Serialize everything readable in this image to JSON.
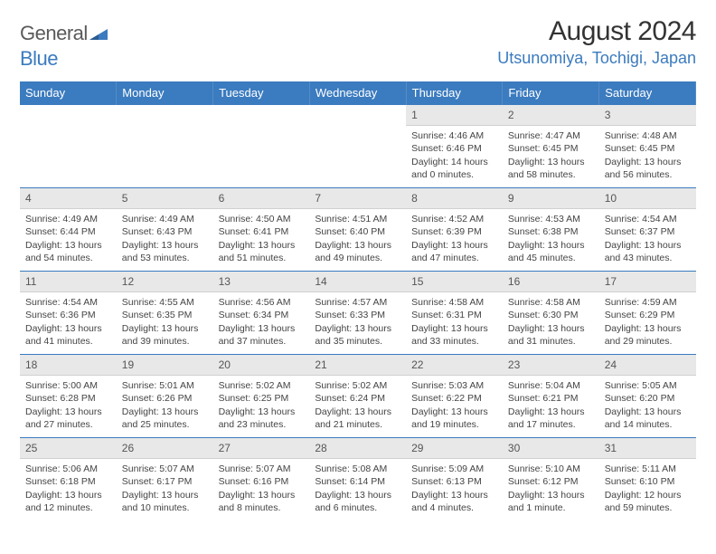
{
  "logo": {
    "text1": "General",
    "text2": "Blue"
  },
  "title": "August 2024",
  "location": "Utsunomiya, Tochigi, Japan",
  "colors": {
    "accent": "#3b7bbf",
    "header_bg": "#3b7bbf",
    "header_text": "#ffffff",
    "day_number_bg": "#e8e8e8",
    "body_bg": "#ffffff",
    "text": "#333333",
    "grid_line": "#3b7bbf"
  },
  "weekdays": [
    "Sunday",
    "Monday",
    "Tuesday",
    "Wednesday",
    "Thursday",
    "Friday",
    "Saturday"
  ],
  "weeks": [
    [
      null,
      null,
      null,
      null,
      {
        "n": "1",
        "sunrise": "4:46 AM",
        "sunset": "6:46 PM",
        "daylight": "14 hours and 0 minutes."
      },
      {
        "n": "2",
        "sunrise": "4:47 AM",
        "sunset": "6:45 PM",
        "daylight": "13 hours and 58 minutes."
      },
      {
        "n": "3",
        "sunrise": "4:48 AM",
        "sunset": "6:45 PM",
        "daylight": "13 hours and 56 minutes."
      }
    ],
    [
      {
        "n": "4",
        "sunrise": "4:49 AM",
        "sunset": "6:44 PM",
        "daylight": "13 hours and 54 minutes."
      },
      {
        "n": "5",
        "sunrise": "4:49 AM",
        "sunset": "6:43 PM",
        "daylight": "13 hours and 53 minutes."
      },
      {
        "n": "6",
        "sunrise": "4:50 AM",
        "sunset": "6:41 PM",
        "daylight": "13 hours and 51 minutes."
      },
      {
        "n": "7",
        "sunrise": "4:51 AM",
        "sunset": "6:40 PM",
        "daylight": "13 hours and 49 minutes."
      },
      {
        "n": "8",
        "sunrise": "4:52 AM",
        "sunset": "6:39 PM",
        "daylight": "13 hours and 47 minutes."
      },
      {
        "n": "9",
        "sunrise": "4:53 AM",
        "sunset": "6:38 PM",
        "daylight": "13 hours and 45 minutes."
      },
      {
        "n": "10",
        "sunrise": "4:54 AM",
        "sunset": "6:37 PM",
        "daylight": "13 hours and 43 minutes."
      }
    ],
    [
      {
        "n": "11",
        "sunrise": "4:54 AM",
        "sunset": "6:36 PM",
        "daylight": "13 hours and 41 minutes."
      },
      {
        "n": "12",
        "sunrise": "4:55 AM",
        "sunset": "6:35 PM",
        "daylight": "13 hours and 39 minutes."
      },
      {
        "n": "13",
        "sunrise": "4:56 AM",
        "sunset": "6:34 PM",
        "daylight": "13 hours and 37 minutes."
      },
      {
        "n": "14",
        "sunrise": "4:57 AM",
        "sunset": "6:33 PM",
        "daylight": "13 hours and 35 minutes."
      },
      {
        "n": "15",
        "sunrise": "4:58 AM",
        "sunset": "6:31 PM",
        "daylight": "13 hours and 33 minutes."
      },
      {
        "n": "16",
        "sunrise": "4:58 AM",
        "sunset": "6:30 PM",
        "daylight": "13 hours and 31 minutes."
      },
      {
        "n": "17",
        "sunrise": "4:59 AM",
        "sunset": "6:29 PM",
        "daylight": "13 hours and 29 minutes."
      }
    ],
    [
      {
        "n": "18",
        "sunrise": "5:00 AM",
        "sunset": "6:28 PM",
        "daylight": "13 hours and 27 minutes."
      },
      {
        "n": "19",
        "sunrise": "5:01 AM",
        "sunset": "6:26 PM",
        "daylight": "13 hours and 25 minutes."
      },
      {
        "n": "20",
        "sunrise": "5:02 AM",
        "sunset": "6:25 PM",
        "daylight": "13 hours and 23 minutes."
      },
      {
        "n": "21",
        "sunrise": "5:02 AM",
        "sunset": "6:24 PM",
        "daylight": "13 hours and 21 minutes."
      },
      {
        "n": "22",
        "sunrise": "5:03 AM",
        "sunset": "6:22 PM",
        "daylight": "13 hours and 19 minutes."
      },
      {
        "n": "23",
        "sunrise": "5:04 AM",
        "sunset": "6:21 PM",
        "daylight": "13 hours and 17 minutes."
      },
      {
        "n": "24",
        "sunrise": "5:05 AM",
        "sunset": "6:20 PM",
        "daylight": "13 hours and 14 minutes."
      }
    ],
    [
      {
        "n": "25",
        "sunrise": "5:06 AM",
        "sunset": "6:18 PM",
        "daylight": "13 hours and 12 minutes."
      },
      {
        "n": "26",
        "sunrise": "5:07 AM",
        "sunset": "6:17 PM",
        "daylight": "13 hours and 10 minutes."
      },
      {
        "n": "27",
        "sunrise": "5:07 AM",
        "sunset": "6:16 PM",
        "daylight": "13 hours and 8 minutes."
      },
      {
        "n": "28",
        "sunrise": "5:08 AM",
        "sunset": "6:14 PM",
        "daylight": "13 hours and 6 minutes."
      },
      {
        "n": "29",
        "sunrise": "5:09 AM",
        "sunset": "6:13 PM",
        "daylight": "13 hours and 4 minutes."
      },
      {
        "n": "30",
        "sunrise": "5:10 AM",
        "sunset": "6:12 PM",
        "daylight": "13 hours and 1 minute."
      },
      {
        "n": "31",
        "sunrise": "5:11 AM",
        "sunset": "6:10 PM",
        "daylight": "12 hours and 59 minutes."
      }
    ]
  ],
  "labels": {
    "sunrise": "Sunrise:",
    "sunset": "Sunset:",
    "daylight": "Daylight:"
  }
}
